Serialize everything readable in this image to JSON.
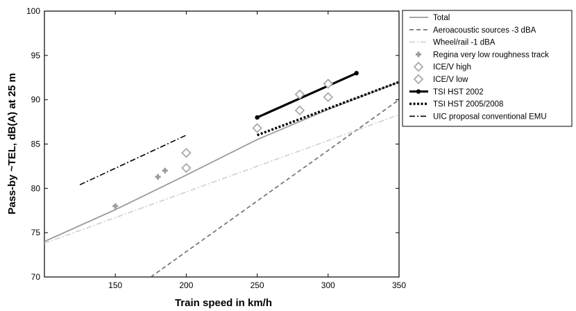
{
  "chart_data": {
    "type": "line",
    "title": "",
    "xlabel": "Train speed in km/h",
    "ylabel": "Pass-by ~TEL, dB(A) at 25 m",
    "xlim": [
      100,
      350
    ],
    "ylim": [
      70,
      100
    ],
    "xticks": [
      150,
      200,
      250,
      300,
      350
    ],
    "yticks": [
      70,
      75,
      80,
      85,
      90,
      95,
      100
    ],
    "grid": false,
    "legend_position": "outside-right-top",
    "series": [
      {
        "name": "Total",
        "kind": "line",
        "style": "solid",
        "color": "#9a9a9a",
        "x": [
          100,
          150,
          200,
          250,
          300,
          350
        ],
        "y": [
          74.0,
          77.6,
          81.5,
          85.5,
          88.9,
          92.0
        ]
      },
      {
        "name": "Aeroacoustic sources -3 dBA",
        "kind": "line",
        "style": "dashed",
        "color": "#6a6a6a",
        "x": [
          175,
          350
        ],
        "y": [
          70.0,
          90.0
        ]
      },
      {
        "name": "Wheel/rail -1 dBA",
        "kind": "line",
        "style": "dashdot",
        "color": "#cfcfcf",
        "x": [
          100,
          350
        ],
        "y": [
          73.8,
          88.3
        ]
      },
      {
        "name": "Regina very low roughness track",
        "kind": "marker",
        "marker": "plus",
        "color": "#9a9a9a",
        "x": [
          150,
          180,
          185,
          300
        ],
        "y": [
          78.0,
          81.3,
          82.0,
          92.0
        ]
      },
      {
        "name": "ICE/V high",
        "kind": "marker",
        "marker": "diamond",
        "color": "#a8a8a8",
        "x": [
          200,
          280,
          300
        ],
        "y": [
          84.0,
          90.6,
          91.8
        ]
      },
      {
        "name": "ICE/V low",
        "kind": "marker",
        "marker": "diamond",
        "color": "#a8a8a8",
        "x": [
          200,
          250,
          280,
          300
        ],
        "y": [
          82.3,
          86.8,
          88.8,
          90.3
        ]
      },
      {
        "name": "TSI HST 2002",
        "kind": "line",
        "style": "solid-thick",
        "marker": "dot",
        "color": "#000000",
        "x": [
          250,
          320
        ],
        "y": [
          88.0,
          93.0
        ]
      },
      {
        "name": "TSI HST 2005/2008",
        "kind": "line",
        "style": "dotted-thick",
        "color": "#000000",
        "x": [
          250,
          350
        ],
        "y": [
          86.0,
          92.0
        ]
      },
      {
        "name": "UIC proposal conventional EMU",
        "kind": "line",
        "style": "dashdot",
        "color": "#000000",
        "x": [
          125,
          200
        ],
        "y": [
          80.4,
          86.0
        ]
      }
    ]
  }
}
